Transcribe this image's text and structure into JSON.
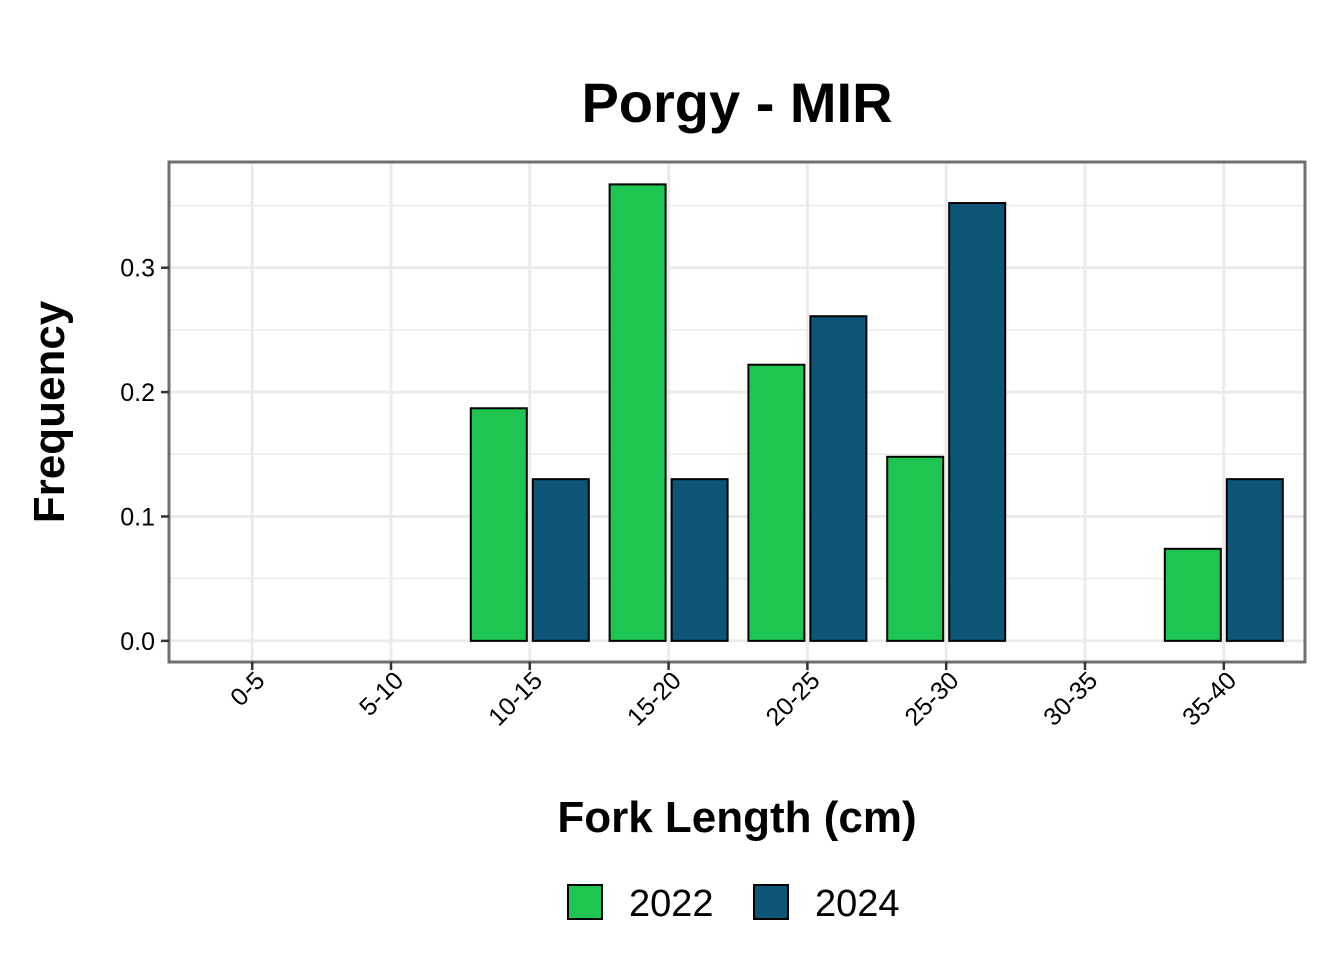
{
  "chart_data": {
    "type": "bar",
    "title": "Porgy - MIR",
    "xlabel": "Fork Length (cm)",
    "ylabel": "Frequency",
    "categories": [
      "0-5",
      "5-10",
      "10-15",
      "15-20",
      "20-25",
      "25-30",
      "30-35",
      "35-40"
    ],
    "series": [
      {
        "name": "2022",
        "color": "#1ec651",
        "values": [
          0,
          0,
          0.187,
          0.367,
          0.222,
          0.148,
          0,
          0.074
        ]
      },
      {
        "name": "2024",
        "color": "#0d5677",
        "values": [
          0,
          0,
          0.13,
          0.13,
          0.261,
          0.352,
          0,
          0.13
        ]
      }
    ],
    "ylim": [
      -0.017,
      0.385
    ],
    "yticks": [
      "0.0",
      "0.1",
      "0.2",
      "0.3"
    ],
    "grid": true,
    "legend_position": "bottom"
  }
}
